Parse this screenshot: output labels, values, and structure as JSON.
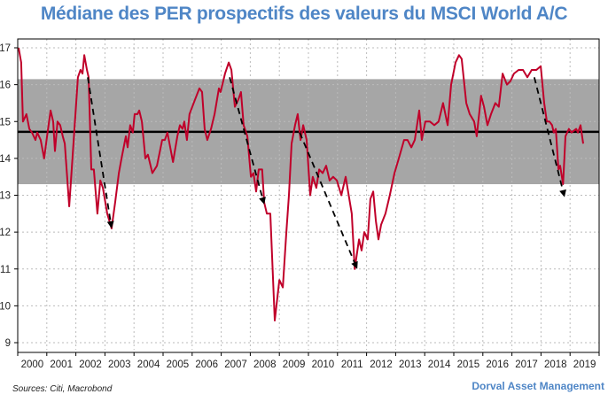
{
  "chart_data": {
    "type": "line",
    "title": "Médiane des PER prospectifs des valeurs du MSCI World A/C",
    "xlabel": "",
    "ylabel": "",
    "xlim": [
      2000,
      2020
    ],
    "ylim": [
      9,
      17
    ],
    "x_tick_labels": [
      "2000",
      "2001",
      "2002",
      "2003",
      "2004",
      "2005",
      "2006",
      "2007",
      "2008",
      "2009",
      "2010",
      "2011",
      "2012",
      "2013",
      "2014",
      "2015",
      "2016",
      "2017",
      "2018",
      "2019"
    ],
    "y_ticks": [
      9,
      10,
      11,
      12,
      13,
      14,
      15,
      16,
      17
    ],
    "grid": true,
    "colors": {
      "line": "#c0002a",
      "band": "#a6a6a6",
      "mean": "#000000",
      "title": "#4f86c6"
    },
    "band": [
      13.3,
      16.15
    ],
    "mean": 14.72,
    "series": [
      {
        "x": [
          2000.03,
          2000.12,
          2000.18,
          2000.24,
          2000.3,
          2000.4,
          2000.49,
          2000.61,
          2000.67,
          2000.79,
          2000.91,
          2001.01,
          2001.13,
          2001.22,
          2001.28,
          2001.37,
          2001.46,
          2001.55,
          2001.62,
          2001.77,
          2001.95,
          2002.07,
          2002.16,
          2002.23,
          2002.29,
          2002.38,
          2002.44,
          2002.53,
          2002.62,
          2002.74,
          2002.84,
          2002.93,
          2003.08,
          2003.23,
          2003.35,
          2003.48,
          2003.57,
          2003.72,
          2003.78,
          2003.87,
          2003.96,
          2004.02,
          2004.12,
          2004.18,
          2004.27,
          2004.39,
          2004.48,
          2004.63,
          2004.79,
          2004.97,
          2005.06,
          2005.15,
          2005.34,
          2005.49,
          2005.58,
          2005.67,
          2005.73,
          2005.82,
          2005.91,
          2006.1,
          2006.25,
          2006.34,
          2006.43,
          2006.52,
          2006.65,
          2006.77,
          2006.92,
          2006.98,
          2007.13,
          2007.26,
          2007.35,
          2007.47,
          2007.59,
          2007.68,
          2007.77,
          2007.9,
          2008.02,
          2008.11,
          2008.2,
          2008.29,
          2008.41,
          2008.48,
          2008.57,
          2008.69,
          2008.84,
          2009.0,
          2009.12,
          2009.24,
          2009.33,
          2009.42,
          2009.54,
          2009.63,
          2009.73,
          2009.82,
          2009.94,
          2010.06,
          2010.15,
          2010.27,
          2010.37,
          2010.49,
          2010.61,
          2010.73,
          2010.85,
          2010.98,
          2011.13,
          2011.28,
          2011.49,
          2011.59,
          2011.74,
          2011.83,
          2011.92,
          2012.04,
          2012.13,
          2012.23,
          2012.32,
          2012.41,
          2012.5,
          2012.65,
          2012.8,
          2012.96,
          2013.11,
          2013.29,
          2013.41,
          2013.54,
          2013.66,
          2013.81,
          2013.9,
          2014.02,
          2014.18,
          2014.33,
          2014.48,
          2014.63,
          2014.79,
          2014.91,
          2015.06,
          2015.18,
          2015.27,
          2015.43,
          2015.55,
          2015.7,
          2015.79,
          2015.94,
          2016.04,
          2016.16,
          2016.28,
          2016.43,
          2016.55,
          2016.68,
          2016.83,
          2016.95,
          2017.07,
          2017.23,
          2017.38,
          2017.53,
          2017.68,
          2017.84,
          2017.99,
          2018.11,
          2018.2,
          2018.29,
          2018.38,
          2018.44,
          2018.51,
          2018.6,
          2018.66,
          2018.76,
          2018.84,
          2018.96,
          2019.05,
          2019.21,
          2019.27,
          2019.36,
          2019.45
        ],
        "values": [
          17.0,
          16.6,
          15.0,
          15.1,
          15.2,
          14.8,
          14.7,
          14.5,
          14.7,
          14.5,
          14.0,
          14.6,
          15.3,
          15.0,
          14.2,
          15.0,
          14.9,
          14.6,
          14.4,
          12.7,
          14.8,
          16.2,
          16.4,
          16.3,
          16.8,
          16.4,
          16.2,
          13.7,
          13.7,
          12.5,
          13.4,
          13.2,
          12.5,
          12.1,
          12.8,
          13.6,
          14.0,
          14.6,
          14.3,
          14.9,
          14.7,
          15.2,
          15.2,
          15.3,
          15.0,
          14.0,
          14.1,
          13.6,
          13.8,
          14.5,
          14.5,
          14.7,
          13.9,
          14.6,
          14.9,
          14.8,
          15.0,
          14.5,
          15.2,
          15.6,
          15.9,
          15.8,
          14.8,
          14.5,
          14.8,
          15.2,
          15.9,
          15.8,
          16.3,
          16.6,
          16.4,
          15.4,
          15.6,
          15.8,
          14.9,
          14.6,
          13.5,
          13.6,
          13.1,
          13.7,
          13.7,
          12.8,
          12.5,
          12.5,
          9.6,
          10.7,
          10.5,
          12.0,
          13.0,
          14.4,
          14.9,
          15.2,
          14.5,
          14.9,
          14.5,
          13.0,
          13.5,
          13.2,
          13.7,
          13.6,
          13.8,
          13.4,
          13.5,
          13.4,
          13.0,
          13.5,
          12.5,
          11.0,
          11.8,
          11.5,
          12.0,
          11.8,
          12.9,
          13.1,
          12.3,
          11.8,
          12.2,
          12.5,
          13.0,
          13.6,
          14.0,
          14.5,
          14.5,
          14.3,
          14.5,
          15.3,
          14.5,
          15.0,
          15.0,
          14.9,
          15.0,
          15.5,
          14.9,
          16.0,
          16.6,
          16.8,
          16.7,
          15.5,
          15.2,
          15.0,
          14.6,
          15.7,
          15.4,
          14.9,
          15.2,
          15.5,
          15.4,
          16.3,
          16.0,
          16.1,
          16.3,
          16.4,
          16.4,
          16.2,
          16.4,
          16.4,
          16.5,
          15.5,
          15.0,
          15.0,
          14.9,
          14.7,
          14.8,
          13.7,
          13.8,
          13.3,
          14.6,
          14.8,
          14.7,
          14.8,
          14.7,
          14.9,
          14.4
        ]
      }
    ],
    "arrows": [
      {
        "from": [
          2002.41,
          16.2
        ],
        "to": [
          2003.23,
          12.1
        ]
      },
      {
        "from": [
          2007.29,
          16.2
        ],
        "to": [
          2008.48,
          12.75
        ]
      },
      {
        "from": [
          2009.7,
          14.7
        ],
        "to": [
          2011.68,
          11.0
        ]
      },
      {
        "from": [
          2017.77,
          16.2
        ],
        "to": [
          2018.81,
          12.95
        ]
      }
    ]
  },
  "footer": {
    "sources": "Sources: Citi, Macrobond",
    "brand": "Dorval Asset Management"
  }
}
